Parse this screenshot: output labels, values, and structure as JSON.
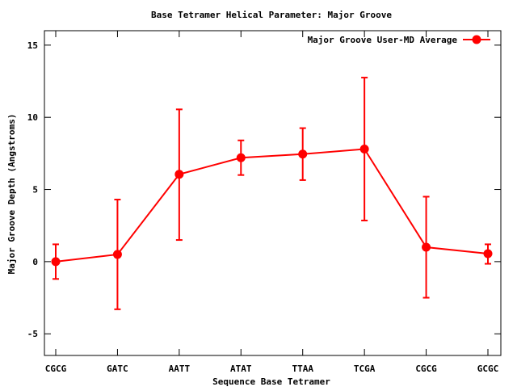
{
  "chart_data": {
    "type": "line",
    "title": "Base Tetramer Helical Parameter: Major Groove",
    "xlabel": "Sequence Base Tetramer",
    "ylabel": "Major Groove Depth (Angstroms)",
    "categories": [
      "CGCG",
      "GATC",
      "AATT",
      "ATAT",
      "TTAA",
      "TCGA",
      "CGCG",
      "GCGC"
    ],
    "ylim": [
      -6.5,
      16
    ],
    "yticks": [
      -5,
      0,
      5,
      10,
      15
    ],
    "ytick_labels": [
      "-5",
      "0",
      "5",
      "10",
      "15"
    ],
    "grid": false,
    "legend_position": "top-right",
    "series": [
      {
        "name": "Major Groove User-MD Average",
        "color": "#ff0000",
        "values": [
          0.0,
          0.5,
          6.05,
          7.2,
          7.45,
          7.8,
          1.0,
          0.55
        ],
        "err_low": [
          -1.2,
          -3.3,
          1.5,
          6.0,
          5.65,
          2.85,
          -2.5,
          -0.15
        ],
        "err_high": [
          1.2,
          4.3,
          10.55,
          8.4,
          9.25,
          12.75,
          4.5,
          1.2
        ]
      }
    ]
  }
}
